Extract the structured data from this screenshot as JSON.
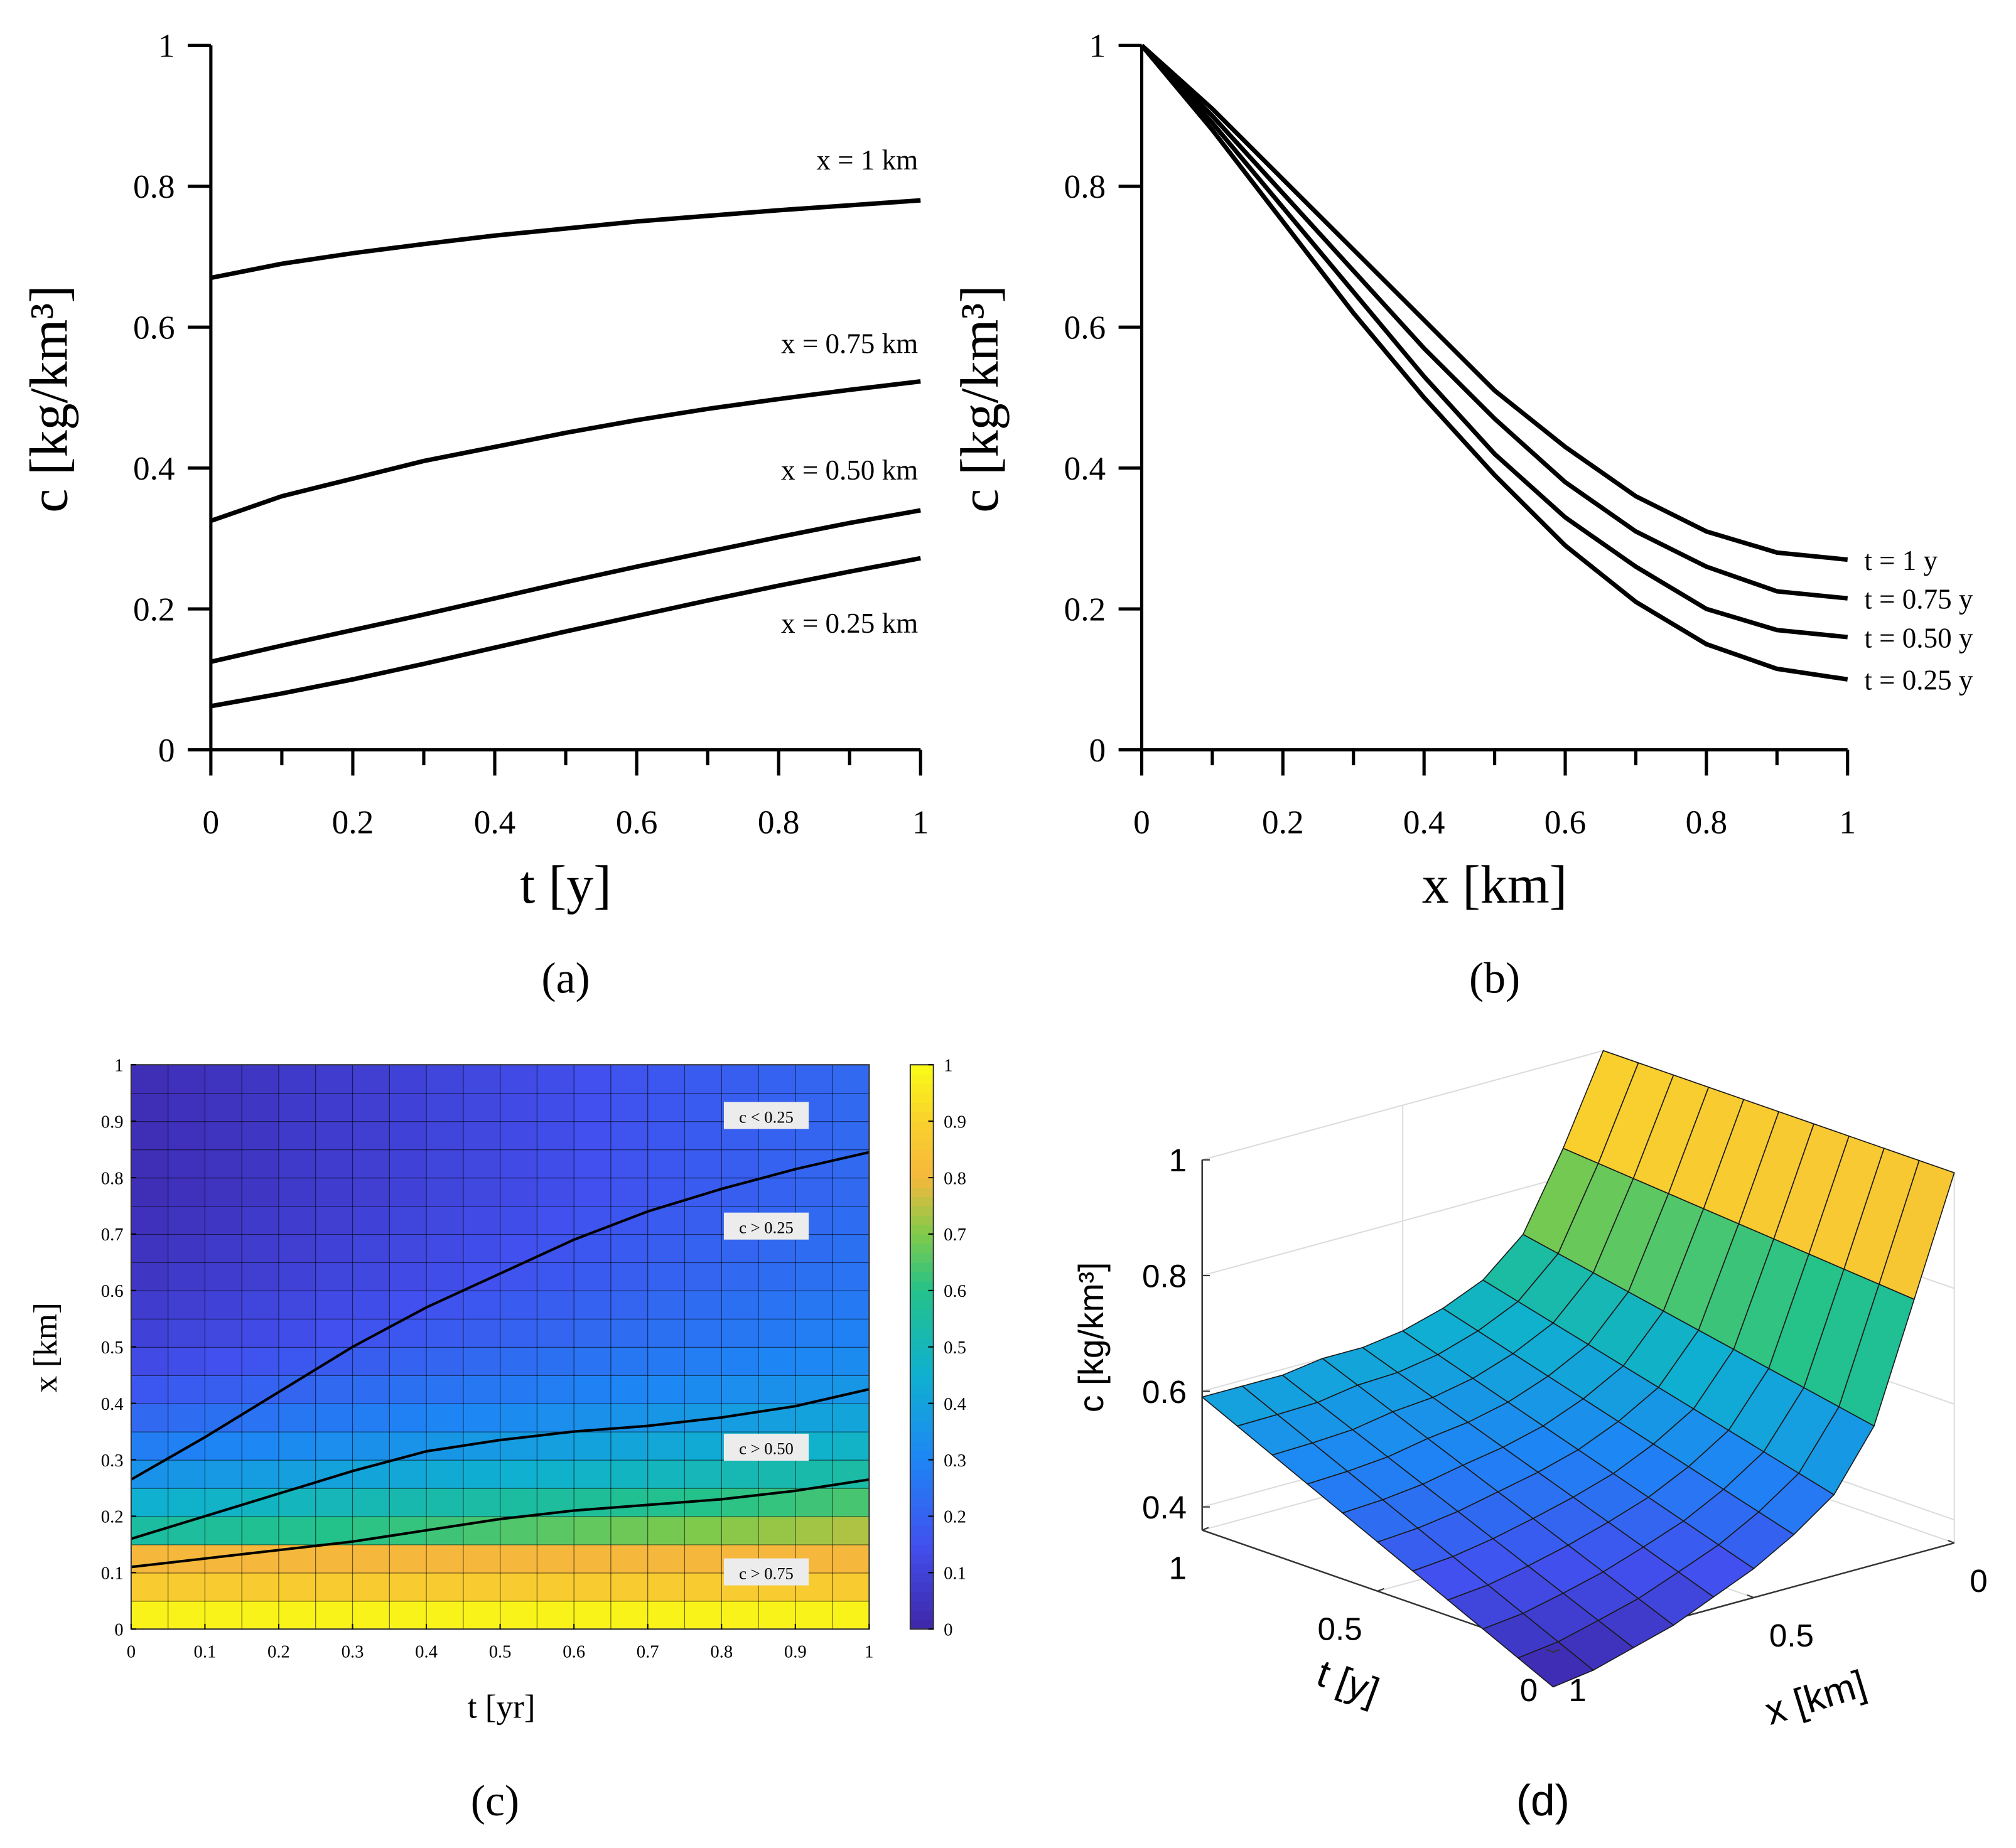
{
  "chart_data": [
    {
      "type": "line",
      "panel_label": "(a)",
      "xlabel": "t [y]",
      "ylabel": "c [kg/km³]",
      "x": [
        0,
        0.1,
        0.2,
        0.3,
        0.4,
        0.5,
        0.6,
        0.7,
        0.8,
        0.9,
        1
      ],
      "xlim": [
        0,
        1
      ],
      "ylim": [
        0,
        1
      ],
      "xticks": [
        0,
        0.2,
        0.4,
        0.6,
        0.8,
        1
      ],
      "xminorticks": [
        0.1,
        0.3,
        0.5,
        0.7,
        0.9
      ],
      "yticks": [
        0,
        0.2,
        0.4,
        0.6,
        0.8,
        1
      ],
      "series": [
        {
          "name": "x = 1 km",
          "color": "#000000",
          "values": [
            0.67,
            0.69,
            0.705,
            0.718,
            0.73,
            0.74,
            0.75,
            0.758,
            0.766,
            0.773,
            0.78
          ]
        },
        {
          "name": "x = 0.75 km",
          "color": "#000000",
          "values": [
            0.325,
            0.36,
            0.385,
            0.41,
            0.43,
            0.45,
            0.468,
            0.484,
            0.498,
            0.511,
            0.523
          ]
        },
        {
          "name": "x = 0.50 km",
          "color": "#000000",
          "values": [
            0.125,
            0.148,
            0.17,
            0.192,
            0.215,
            0.238,
            0.26,
            0.281,
            0.302,
            0.322,
            0.34
          ]
        },
        {
          "name": "x = 0.25 km",
          "color": "#000000",
          "values": [
            0.062,
            0.08,
            0.1,
            0.122,
            0.145,
            0.168,
            0.19,
            0.212,
            0.233,
            0.253,
            0.272
          ]
        }
      ]
    },
    {
      "type": "line",
      "panel_label": "(b)",
      "xlabel": "x [km]",
      "ylabel": "c [kg/km³]",
      "x": [
        0,
        0.1,
        0.2,
        0.3,
        0.4,
        0.5,
        0.6,
        0.7,
        0.8,
        0.9,
        1
      ],
      "xlim": [
        0,
        1
      ],
      "ylim": [
        0,
        1
      ],
      "xticks": [
        0,
        0.2,
        0.4,
        0.6,
        0.8,
        1
      ],
      "xminorticks": [
        0.1,
        0.3,
        0.5,
        0.7,
        0.9
      ],
      "yticks": [
        0,
        0.2,
        0.4,
        0.6,
        0.8,
        1
      ],
      "series": [
        {
          "name": "t = 1 y",
          "color": "#000000",
          "values": [
            1,
            0.91,
            0.81,
            0.71,
            0.61,
            0.51,
            0.43,
            0.36,
            0.31,
            0.28,
            0.27
          ]
        },
        {
          "name": "t = 0.75 y",
          "color": "#000000",
          "values": [
            1,
            0.9,
            0.79,
            0.68,
            0.57,
            0.47,
            0.38,
            0.31,
            0.26,
            0.225,
            0.215
          ]
        },
        {
          "name": "t = 0.50 y",
          "color": "#000000",
          "values": [
            1,
            0.89,
            0.77,
            0.65,
            0.53,
            0.42,
            0.33,
            0.26,
            0.2,
            0.17,
            0.16
          ]
        },
        {
          "name": "t = 0.25 y",
          "color": "#000000",
          "values": [
            1,
            0.88,
            0.75,
            0.62,
            0.5,
            0.39,
            0.29,
            0.21,
            0.15,
            0.115,
            0.1
          ]
        }
      ]
    },
    {
      "type": "heatmap",
      "panel_label": "(c)",
      "xlabel": "t [yr]",
      "ylabel": "x [km]",
      "colormap": "parula",
      "xlim": [
        0,
        1
      ],
      "ylim": [
        0,
        1
      ],
      "xticks": [
        0,
        0.1,
        0.2,
        0.3,
        0.4,
        0.5,
        0.6,
        0.7,
        0.8,
        0.9,
        1
      ],
      "yticks": [
        0,
        0.1,
        0.2,
        0.3,
        0.4,
        0.5,
        0.6,
        0.7,
        0.8,
        0.9,
        1
      ],
      "clim": [
        0,
        1
      ],
      "cbar_ticks": [
        0,
        0.1,
        0.2,
        0.3,
        0.4,
        0.5,
        0.6,
        0.7,
        0.8,
        0.9,
        1
      ],
      "z": [
        [
          0.98,
          0.98,
          0.98,
          0.98,
          0.98,
          0.98,
          0.98,
          0.98,
          0.98,
          0.98,
          0.98,
          0.98,
          0.98,
          0.98,
          0.98,
          0.98,
          0.98,
          0.98,
          0.98,
          0.98
        ],
        [
          0.88,
          0.88,
          0.88,
          0.88,
          0.88,
          0.88,
          0.88,
          0.88,
          0.88,
          0.88,
          0.88,
          0.88,
          0.88,
          0.88,
          0.88,
          0.88,
          0.88,
          0.88,
          0.88,
          0.88
        ],
        [
          0.8,
          0.8,
          0.8,
          0.8,
          0.8,
          0.8,
          0.8,
          0.8,
          0.8,
          0.8,
          0.8,
          0.8,
          0.8,
          0.8,
          0.8,
          0.8,
          0.8,
          0.8,
          0.8,
          0.8
        ],
        [
          0.55,
          0.56,
          0.57,
          0.58,
          0.59,
          0.6,
          0.61,
          0.62,
          0.63,
          0.64,
          0.65,
          0.66,
          0.67,
          0.68,
          0.69,
          0.7,
          0.71,
          0.72,
          0.73,
          0.74
        ],
        [
          0.45,
          0.46,
          0.47,
          0.48,
          0.49,
          0.5,
          0.51,
          0.52,
          0.53,
          0.54,
          0.55,
          0.56,
          0.57,
          0.58,
          0.59,
          0.6,
          0.61,
          0.62,
          0.63,
          0.64
        ],
        [
          0.35,
          0.36,
          0.37,
          0.38,
          0.39,
          0.4,
          0.41,
          0.42,
          0.43,
          0.44,
          0.45,
          0.46,
          0.47,
          0.48,
          0.49,
          0.5,
          0.51,
          0.52,
          0.53,
          0.54
        ],
        [
          0.28,
          0.29,
          0.3,
          0.31,
          0.32,
          0.33,
          0.34,
          0.35,
          0.36,
          0.37,
          0.38,
          0.39,
          0.4,
          0.41,
          0.42,
          0.43,
          0.44,
          0.45,
          0.46,
          0.47
        ],
        [
          0.22,
          0.23,
          0.24,
          0.25,
          0.26,
          0.27,
          0.28,
          0.29,
          0.3,
          0.31,
          0.32,
          0.33,
          0.34,
          0.35,
          0.36,
          0.37,
          0.38,
          0.39,
          0.4,
          0.41
        ],
        [
          0.17,
          0.18,
          0.19,
          0.2,
          0.21,
          0.22,
          0.23,
          0.24,
          0.25,
          0.26,
          0.27,
          0.28,
          0.29,
          0.3,
          0.31,
          0.32,
          0.33,
          0.34,
          0.35,
          0.36
        ],
        [
          0.13,
          0.14,
          0.15,
          0.16,
          0.17,
          0.18,
          0.19,
          0.2,
          0.21,
          0.22,
          0.23,
          0.24,
          0.25,
          0.26,
          0.27,
          0.28,
          0.29,
          0.3,
          0.31,
          0.32
        ],
        [
          0.1,
          0.11,
          0.12,
          0.13,
          0.14,
          0.15,
          0.16,
          0.17,
          0.18,
          0.19,
          0.2,
          0.21,
          0.22,
          0.23,
          0.24,
          0.25,
          0.26,
          0.27,
          0.28,
          0.29
        ],
        [
          0.08,
          0.09,
          0.1,
          0.11,
          0.12,
          0.13,
          0.14,
          0.15,
          0.16,
          0.17,
          0.18,
          0.19,
          0.2,
          0.21,
          0.22,
          0.23,
          0.24,
          0.25,
          0.26,
          0.27
        ],
        [
          0.06,
          0.07,
          0.08,
          0.09,
          0.1,
          0.11,
          0.12,
          0.13,
          0.14,
          0.15,
          0.16,
          0.17,
          0.18,
          0.19,
          0.2,
          0.21,
          0.22,
          0.23,
          0.24,
          0.25
        ],
        [
          0.05,
          0.06,
          0.07,
          0.08,
          0.09,
          0.1,
          0.11,
          0.12,
          0.13,
          0.14,
          0.15,
          0.16,
          0.17,
          0.18,
          0.19,
          0.2,
          0.21,
          0.22,
          0.23,
          0.24
        ],
        [
          0.04,
          0.05,
          0.06,
          0.07,
          0.08,
          0.09,
          0.1,
          0.11,
          0.12,
          0.13,
          0.14,
          0.15,
          0.16,
          0.17,
          0.18,
          0.19,
          0.2,
          0.21,
          0.22,
          0.23
        ],
        [
          0.03,
          0.04,
          0.05,
          0.06,
          0.07,
          0.08,
          0.09,
          0.1,
          0.11,
          0.12,
          0.13,
          0.14,
          0.15,
          0.16,
          0.17,
          0.18,
          0.19,
          0.2,
          0.21,
          0.22
        ],
        [
          0.03,
          0.04,
          0.05,
          0.06,
          0.07,
          0.08,
          0.09,
          0.1,
          0.11,
          0.12,
          0.13,
          0.14,
          0.15,
          0.16,
          0.17,
          0.18,
          0.19,
          0.2,
          0.21,
          0.22
        ],
        [
          0.03,
          0.04,
          0.05,
          0.06,
          0.07,
          0.08,
          0.09,
          0.1,
          0.11,
          0.12,
          0.13,
          0.14,
          0.15,
          0.16,
          0.17,
          0.18,
          0.19,
          0.2,
          0.21,
          0.22
        ],
        [
          0.03,
          0.04,
          0.05,
          0.06,
          0.07,
          0.08,
          0.09,
          0.1,
          0.11,
          0.12,
          0.13,
          0.14,
          0.15,
          0.16,
          0.17,
          0.18,
          0.19,
          0.2,
          0.21,
          0.22
        ],
        [
          0.03,
          0.04,
          0.05,
          0.06,
          0.07,
          0.08,
          0.09,
          0.1,
          0.11,
          0.12,
          0.13,
          0.14,
          0.15,
          0.16,
          0.17,
          0.18,
          0.19,
          0.2,
          0.21,
          0.22
        ]
      ],
      "contour_t": [
        0,
        0.1,
        0.2,
        0.3,
        0.4,
        0.5,
        0.6,
        0.7,
        0.8,
        0.9,
        1
      ],
      "contours": [
        {
          "values": [
            0.265,
            0.34,
            0.42,
            0.5,
            0.57,
            0.63,
            0.69,
            0.74,
            0.78,
            0.815,
            0.845
          ]
        },
        {
          "values": [
            0.16,
            0.2,
            0.24,
            0.28,
            0.315,
            0.335,
            0.35,
            0.36,
            0.375,
            0.395,
            0.425
          ]
        },
        {
          "values": [
            0.11,
            0.125,
            0.14,
            0.155,
            0.175,
            0.195,
            0.21,
            0.22,
            0.23,
            0.245,
            0.265
          ]
        }
      ],
      "annotations": [
        "c < 0.25",
        "c > 0.25",
        "c > 0.50",
        "c > 0.75"
      ]
    },
    {
      "type": "surface",
      "panel_label": "(d)",
      "xlabel": "x [km]",
      "tlabel": "t [y]",
      "zlabel": "c [kg/km³]",
      "colormap": "parula",
      "t": [
        0,
        0.1,
        0.2,
        0.3,
        0.4,
        0.5,
        0.6,
        0.7,
        0.8,
        0.9,
        1
      ],
      "x": [
        0,
        0.1,
        0.2,
        0.3,
        0.4,
        0.5,
        0.6,
        0.7,
        0.8,
        0.9,
        1
      ],
      "tlim": [
        0,
        1
      ],
      "xlim": [
        0,
        1
      ],
      "zlim": [
        0.36,
        1
      ],
      "clim": [
        0.3,
        1
      ],
      "tticks": [
        0,
        0.5,
        1
      ],
      "xticks": [
        0,
        0.5,
        1
      ],
      "zticks": [
        0.4,
        0.6,
        0.8,
        1
      ],
      "z": [
        [
          1,
          0.8,
          0.6,
          0.5,
          0.45,
          0.41,
          0.38,
          0.35,
          0.33,
          0.31,
          0.3
        ],
        [
          1,
          0.805,
          0.612,
          0.516,
          0.468,
          0.43,
          0.402,
          0.375,
          0.356,
          0.338,
          0.329
        ],
        [
          1,
          0.81,
          0.624,
          0.532,
          0.486,
          0.45,
          0.424,
          0.4,
          0.382,
          0.366,
          0.358
        ],
        [
          1,
          0.815,
          0.636,
          0.548,
          0.504,
          0.47,
          0.446,
          0.425,
          0.408,
          0.394,
          0.387
        ],
        [
          1,
          0.82,
          0.648,
          0.564,
          0.522,
          0.49,
          0.468,
          0.45,
          0.434,
          0.422,
          0.416
        ],
        [
          1,
          0.825,
          0.66,
          0.58,
          0.54,
          0.51,
          0.49,
          0.475,
          0.46,
          0.45,
          0.445
        ],
        [
          1,
          0.83,
          0.672,
          0.596,
          0.558,
          0.53,
          0.512,
          0.5,
          0.486,
          0.478,
          0.474
        ],
        [
          1,
          0.835,
          0.684,
          0.612,
          0.576,
          0.55,
          0.534,
          0.525,
          0.512,
          0.506,
          0.503
        ],
        [
          1,
          0.84,
          0.696,
          0.628,
          0.594,
          0.57,
          0.556,
          0.55,
          0.538,
          0.534,
          0.532
        ],
        [
          1,
          0.845,
          0.708,
          0.644,
          0.612,
          0.59,
          0.578,
          0.575,
          0.564,
          0.562,
          0.561
        ],
        [
          1,
          0.85,
          0.72,
          0.66,
          0.63,
          0.61,
          0.6,
          0.6,
          0.59,
          0.59,
          0.59
        ]
      ]
    }
  ]
}
